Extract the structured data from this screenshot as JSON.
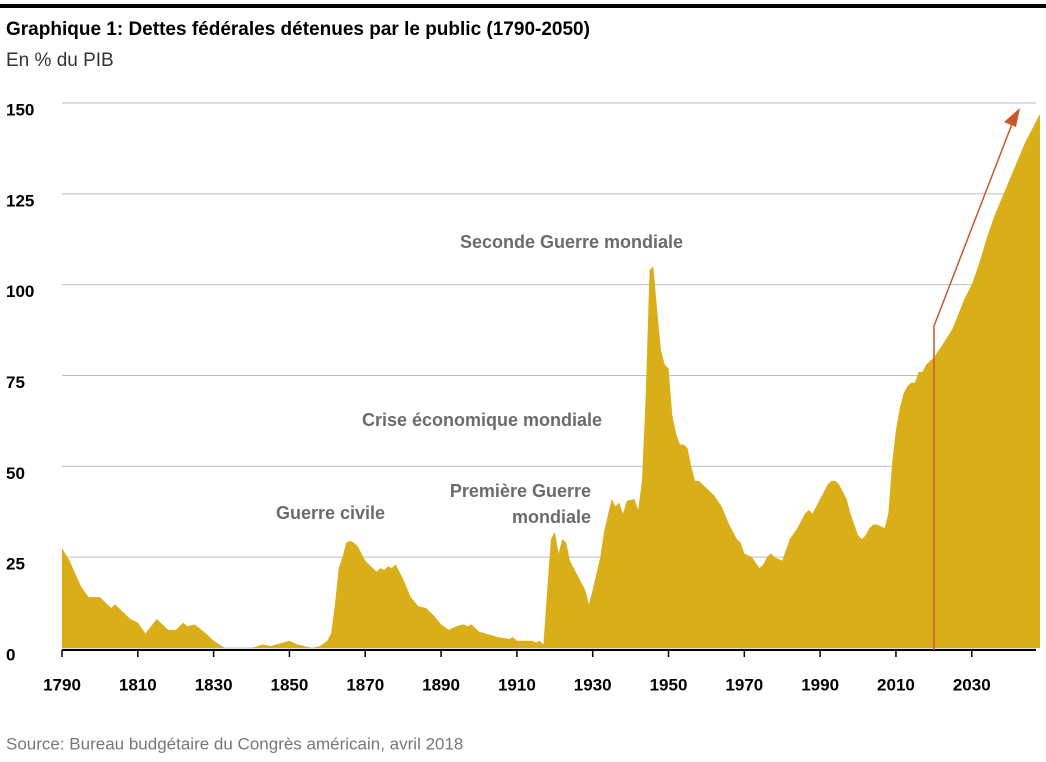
{
  "chart_data": {
    "type": "area",
    "title": "Graphique 1: Dettes fédérales détenues par le public (1790-2050)",
    "subtitle": "En % du PIB",
    "source": "Source: Bureau budgétaire du Congrès américain, avril 2018",
    "annotations": [
      "Seconde Guerre mondiale",
      "Crise économique mondiale",
      "Guerre civile",
      "Première Guerre mondiale"
    ],
    "color": "#d9ae18",
    "grid": true,
    "xlim": [
      1790,
      2048
    ],
    "ylim": [
      0,
      150
    ],
    "xticks": [
      1790,
      1810,
      1830,
      1850,
      1870,
      1890,
      1910,
      1930,
      1950,
      1970,
      1990,
      2010,
      2030
    ],
    "yticks": [
      0,
      25,
      50,
      75,
      100,
      125,
      150
    ],
    "x": [
      1790,
      1792,
      1795,
      1797,
      1800,
      1802,
      1803,
      1804,
      1806,
      1808,
      1810,
      1812,
      1815,
      1818,
      1820,
      1822,
      1823,
      1825,
      1828,
      1830,
      1833,
      1835,
      1840,
      1843,
      1845,
      1850,
      1852,
      1856,
      1858,
      1860,
      1861,
      1862,
      1863,
      1864,
      1865,
      1866,
      1867,
      1868,
      1869,
      1870,
      1872,
      1873,
      1874,
      1875,
      1876,
      1877,
      1878,
      1880,
      1882,
      1884,
      1886,
      1888,
      1890,
      1892,
      1894,
      1896,
      1897,
      1898,
      1900,
      1905,
      1908,
      1909,
      1910,
      1914,
      1915,
      1916,
      1917,
      1918,
      1919,
      1920,
      1921,
      1922,
      1923,
      1924,
      1926,
      1928,
      1929,
      1930,
      1932,
      1933,
      1935,
      1936,
      1937,
      1938,
      1939,
      1941,
      1942,
      1943,
      1944,
      1945,
      1946,
      1947,
      1948,
      1949,
      1950,
      1951,
      1952,
      1953,
      1954,
      1955,
      1956,
      1957,
      1958,
      1960,
      1962,
      1964,
      1966,
      1968,
      1969,
      1970,
      1972,
      1974,
      1975,
      1976,
      1977,
      1978,
      1980,
      1982,
      1984,
      1986,
      1987,
      1988,
      1990,
      1992,
      1993,
      1994,
      1995,
      1997,
      1998,
      1999,
      2000,
      2001,
      2002,
      2003,
      2004,
      2005,
      2006,
      2007,
      2008,
      2009,
      2010,
      2011,
      2012,
      2013,
      2014,
      2015,
      2016,
      2017,
      2018,
      2020,
      2022,
      2025,
      2028,
      2030,
      2032,
      2034,
      2036,
      2040,
      2044,
      2048
    ],
    "values": [
      27.5,
      24,
      17,
      14,
      14,
      12,
      11,
      12,
      10,
      8,
      7,
      4,
      8,
      5,
      5,
      7,
      6,
      6.5,
      4,
      2,
      0,
      0,
      0,
      1,
      0.5,
      2,
      1,
      0,
      0.5,
      2,
      4,
      12,
      22,
      25,
      29,
      29.5,
      29,
      28,
      26,
      24,
      22,
      21,
      22,
      21.5,
      22.5,
      22,
      23,
      19,
      14,
      11.5,
      11,
      9,
      6.5,
      5,
      6,
      6.5,
      6,
      6.5,
      4.5,
      3,
      2.5,
      3,
      2,
      2,
      1.5,
      2,
      1,
      16,
      30,
      32,
      26,
      30,
      29,
      24,
      20,
      16,
      12,
      16,
      25,
      32,
      41,
      39,
      40,
      37,
      40.5,
      41,
      38,
      46,
      70,
      104,
      105,
      93,
      82,
      78,
      77,
      64,
      59,
      56,
      56,
      55,
      50,
      46,
      46,
      44,
      42,
      39,
      34,
      30,
      29,
      26,
      25,
      22,
      23,
      25,
      26,
      25,
      24,
      30,
      33,
      37,
      38,
      37,
      41,
      45,
      46,
      46,
      45,
      41,
      37,
      34,
      31,
      30,
      31,
      33,
      34,
      34,
      33.5,
      33,
      37,
      51,
      60,
      66,
      70,
      72,
      73,
      73,
      76,
      76,
      78,
      80,
      83,
      88,
      96,
      100,
      106,
      113,
      119,
      129,
      139,
      147
    ]
  }
}
